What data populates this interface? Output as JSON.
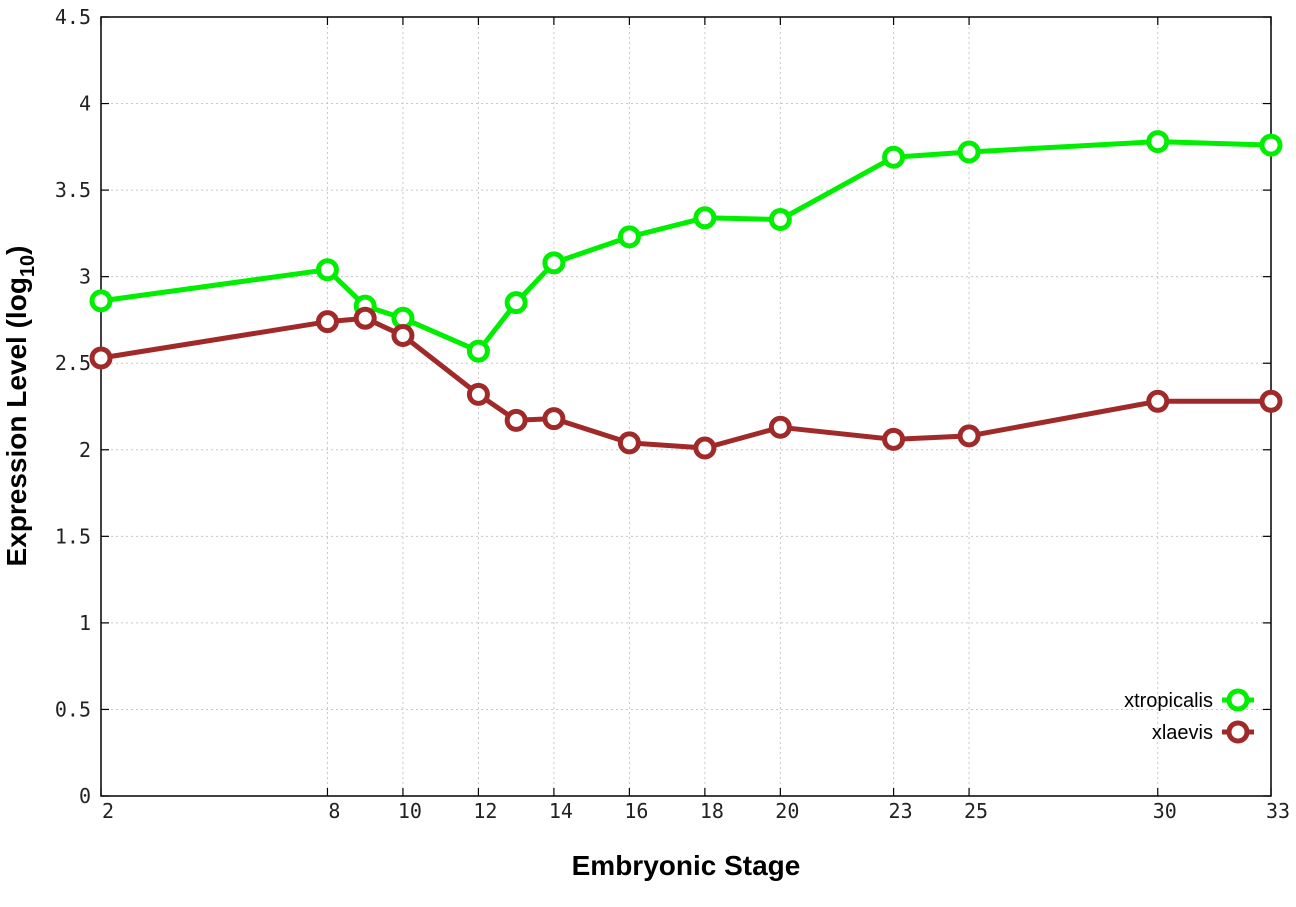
{
  "chart_data": {
    "type": "line",
    "xlabel": "Embryonic Stage",
    "ylabel_main": "Expression Level (log",
    "ylabel_sub": "10",
    "ylabel_close": ")",
    "x_ticks": [
      2,
      8,
      10,
      12,
      14,
      16,
      18,
      20,
      23,
      25,
      30,
      33
    ],
    "y_ticks": [
      "0",
      "0.5",
      "1",
      "1.5",
      "2",
      "2.5",
      "3",
      "3.5",
      "4",
      "4.5"
    ],
    "xlim": [
      2,
      33
    ],
    "ylim": [
      0,
      4.5
    ],
    "grid": true,
    "legend_position": "bottom-right",
    "x": [
      2,
      8,
      9,
      10,
      12,
      13,
      14,
      16,
      18,
      20,
      23,
      25,
      30,
      33
    ],
    "series": [
      {
        "name": "xtropicalis",
        "color": "#00ee00",
        "values": [
          2.86,
          3.04,
          2.83,
          2.76,
          2.57,
          2.85,
          3.08,
          3.23,
          3.34,
          3.33,
          3.69,
          3.72,
          3.78,
          3.76
        ]
      },
      {
        "name": "xlaevis",
        "color": "#a02a2a",
        "values": [
          2.53,
          2.74,
          2.76,
          2.66,
          2.32,
          2.17,
          2.18,
          2.04,
          2.01,
          2.13,
          2.06,
          2.08,
          2.28,
          2.28
        ]
      }
    ]
  }
}
